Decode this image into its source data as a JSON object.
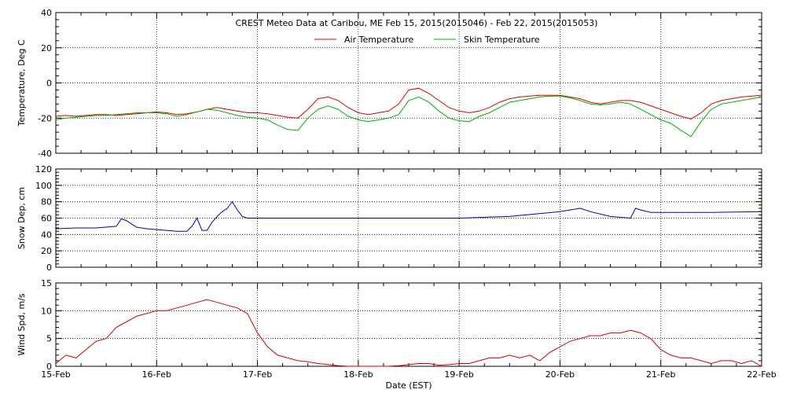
{
  "chart_data": [
    {
      "type": "line",
      "title": "CREST Meteo Data at Caribou, ME   Feb 15, 2015(2015046) - Feb 22, 2015(2015053)",
      "xlabel": "",
      "ylabel": "Temperature, Deg C",
      "ylim": [
        -40,
        40
      ],
      "yticks": [
        -40,
        -20,
        0,
        20,
        40
      ],
      "xlim": [
        0,
        7
      ],
      "grid": true,
      "legend": "top-center",
      "series": [
        {
          "name": "Air Temperature",
          "color": "#e00000",
          "x": [
            0,
            0.1,
            0.2,
            0.3,
            0.4,
            0.5,
            0.6,
            0.7,
            0.8,
            0.9,
            1.0,
            1.1,
            1.2,
            1.3,
            1.4,
            1.5,
            1.6,
            1.7,
            1.8,
            1.9,
            2.0,
            2.1,
            2.2,
            2.3,
            2.4,
            2.5,
            2.6,
            2.7,
            2.8,
            2.9,
            3.0,
            3.1,
            3.2,
            3.3,
            3.4,
            3.5,
            3.6,
            3.7,
            3.8,
            3.9,
            4.0,
            4.1,
            4.2,
            4.3,
            4.4,
            4.5,
            4.6,
            4.7,
            4.8,
            4.9,
            5.0,
            5.1,
            5.2,
            5.3,
            5.4,
            5.5,
            5.6,
            5.7,
            5.8,
            5.9,
            6.0,
            6.1,
            6.2,
            6.3,
            6.4,
            6.5,
            6.6,
            6.7,
            6.8,
            6.9,
            7.0
          ],
          "values": [
            -19,
            -18.5,
            -19,
            -18.5,
            -18,
            -18,
            -18.5,
            -18,
            -17.5,
            -17,
            -16.5,
            -17,
            -18,
            -17.5,
            -16.5,
            -15,
            -14,
            -15,
            -16,
            -17,
            -17,
            -17.5,
            -18.5,
            -19.5,
            -20,
            -15,
            -9,
            -8,
            -10,
            -14,
            -17,
            -18,
            -17,
            -16,
            -12,
            -4,
            -3,
            -6,
            -10,
            -14,
            -16,
            -17,
            -16,
            -14,
            -11,
            -9,
            -8,
            -7.5,
            -7,
            -7,
            -7,
            -8,
            -9,
            -11,
            -12,
            -11,
            -10,
            -10,
            -11,
            -13,
            -15,
            -17,
            -19,
            -20.5,
            -17,
            -12,
            -10,
            -9,
            -8,
            -7.5,
            -7
          ]
        },
        {
          "name": "Skin Temperature",
          "color": "#00b000",
          "x": [
            0,
            0.1,
            0.2,
            0.3,
            0.4,
            0.5,
            0.6,
            0.7,
            0.8,
            0.9,
            1.0,
            1.1,
            1.2,
            1.3,
            1.4,
            1.5,
            1.6,
            1.7,
            1.8,
            1.9,
            2.0,
            2.1,
            2.2,
            2.3,
            2.4,
            2.5,
            2.6,
            2.7,
            2.8,
            2.9,
            3.0,
            3.1,
            3.2,
            3.3,
            3.4,
            3.5,
            3.6,
            3.7,
            3.8,
            3.9,
            4.0,
            4.1,
            4.2,
            4.3,
            4.4,
            4.5,
            4.6,
            4.7,
            4.8,
            4.9,
            5.0,
            5.1,
            5.2,
            5.3,
            5.4,
            5.5,
            5.6,
            5.7,
            5.8,
            5.9,
            6.0,
            6.1,
            6.2,
            6.3,
            6.4,
            6.5,
            6.6,
            6.7,
            6.8,
            6.9,
            7.0
          ],
          "values": [
            -21,
            -20,
            -19.5,
            -19,
            -18.5,
            -18.5,
            -18,
            -17.5,
            -17,
            -17,
            -17,
            -17.5,
            -19,
            -18,
            -16.5,
            -15,
            -15.5,
            -17,
            -18.5,
            -19.5,
            -20,
            -21,
            -24,
            -26.5,
            -27,
            -20,
            -15,
            -13,
            -15,
            -19,
            -21,
            -22,
            -21,
            -20,
            -18,
            -10,
            -8,
            -11,
            -16,
            -20,
            -21.5,
            -22,
            -19,
            -17,
            -14,
            -11,
            -10,
            -9,
            -8,
            -7.5,
            -7.5,
            -8.5,
            -10,
            -12,
            -12.5,
            -12,
            -11,
            -12,
            -15,
            -18,
            -21,
            -23,
            -27,
            -30.5,
            -22,
            -15,
            -12,
            -11,
            -10,
            -9,
            -8
          ]
        }
      ]
    },
    {
      "type": "line",
      "title": "",
      "xlabel": "",
      "ylabel": "Snow Dep, cm",
      "ylim": [
        0,
        120
      ],
      "yticks": [
        0,
        20,
        40,
        60,
        80,
        100,
        120
      ],
      "xlim": [
        0,
        7
      ],
      "grid": true,
      "series": [
        {
          "name": "",
          "color": "#0000b0",
          "x": [
            0,
            0.2,
            0.4,
            0.6,
            0.65,
            0.7,
            0.75,
            0.8,
            0.9,
            1.0,
            1.1,
            1.2,
            1.3,
            1.35,
            1.4,
            1.45,
            1.5,
            1.55,
            1.6,
            1.65,
            1.7,
            1.75,
            1.8,
            1.85,
            1.9,
            2.0,
            2.5,
            3.0,
            3.5,
            4.0,
            4.5,
            5.0,
            5.2,
            5.3,
            5.5,
            5.7,
            5.75,
            5.8,
            5.9,
            6.0,
            6.5,
            7.0
          ],
          "values": [
            47,
            48,
            48,
            50,
            59,
            57,
            53,
            49,
            47,
            46,
            45,
            44,
            44,
            50,
            60,
            45,
            45,
            55,
            62,
            68,
            72,
            80,
            70,
            62,
            60,
            60,
            60,
            60,
            60,
            60,
            62,
            68,
            72,
            68,
            62,
            60,
            72,
            70,
            67,
            67,
            67,
            68
          ]
        }
      ]
    },
    {
      "type": "line",
      "title": "",
      "xlabel": "Date (EST)",
      "ylabel": "Wind Spd, m/s",
      "ylim": [
        0,
        15
      ],
      "yticks": [
        0,
        5,
        10,
        15
      ],
      "xlim": [
        0,
        7
      ],
      "xticks": [
        0,
        1,
        2,
        3,
        4,
        5,
        6,
        7
      ],
      "xtick_labels": [
        "15-Feb",
        "16-Feb",
        "17-Feb",
        "18-Feb",
        "19-Feb",
        "20-Feb",
        "21-Feb",
        "22-Feb"
      ],
      "grid": true,
      "series": [
        {
          "name": "",
          "color": "#d00000",
          "x": [
            0,
            0.1,
            0.2,
            0.3,
            0.4,
            0.5,
            0.6,
            0.7,
            0.8,
            0.9,
            1.0,
            1.1,
            1.2,
            1.3,
            1.4,
            1.5,
            1.6,
            1.7,
            1.8,
            1.9,
            2.0,
            2.1,
            2.2,
            2.3,
            2.4,
            2.5,
            2.6,
            2.7,
            2.8,
            2.9,
            3.0,
            3.1,
            3.2,
            3.3,
            3.4,
            3.5,
            3.6,
            3.7,
            3.8,
            3.9,
            4.0,
            4.1,
            4.2,
            4.3,
            4.4,
            4.5,
            4.6,
            4.7,
            4.8,
            4.9,
            5.0,
            5.1,
            5.2,
            5.3,
            5.4,
            5.5,
            5.6,
            5.7,
            5.8,
            5.9,
            6.0,
            6.1,
            6.2,
            6.3,
            6.4,
            6.5,
            6.6,
            6.7,
            6.8,
            6.9,
            7.0
          ],
          "values": [
            0.5,
            2,
            1.5,
            3,
            4.5,
            5,
            7,
            8,
            9,
            9.5,
            10,
            10,
            10.5,
            11,
            11.5,
            12,
            11.5,
            11,
            10.5,
            9.5,
            6,
            3.5,
            2,
            1.5,
            1,
            0.8,
            0.5,
            0.3,
            0.1,
            0,
            0,
            0,
            0,
            0,
            0.1,
            0.3,
            0.5,
            0.5,
            0.2,
            0.3,
            0.5,
            0.5,
            1,
            1.5,
            1.5,
            2,
            1.5,
            2,
            1,
            2.5,
            3.5,
            4.5,
            5,
            5.5,
            5.5,
            6,
            6,
            6.5,
            6,
            5,
            3,
            2,
            1.5,
            1.5,
            1,
            0.5,
            1,
            1,
            0.5,
            1,
            0
          ]
        }
      ]
    }
  ]
}
